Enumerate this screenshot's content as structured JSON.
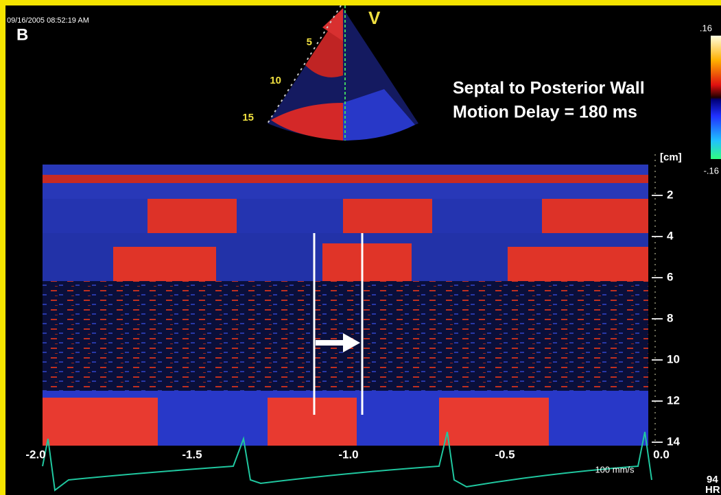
{
  "timestamp": "09/16/2005 08:52:19 AM",
  "panel_label": "B",
  "view_label": "V",
  "sector_depths": [
    "5",
    "10",
    "15"
  ],
  "annotation": {
    "line1": "Septal to Posterior Wall",
    "line2": "Motion Delay = 180 ms"
  },
  "color_scale": {
    "max": ".16",
    "min": "-.16"
  },
  "depth_axis": {
    "unit": "[cm]",
    "labels": [
      "2",
      "4",
      "6",
      "8",
      "10",
      "12",
      "14"
    ]
  },
  "time_axis": {
    "labels": [
      "-2.0",
      "-1.5",
      "-1.0",
      "-0.5",
      "0.0"
    ]
  },
  "sweep_speed": "100 mm/s",
  "heart_rate": {
    "value": "94",
    "label": "HR"
  }
}
